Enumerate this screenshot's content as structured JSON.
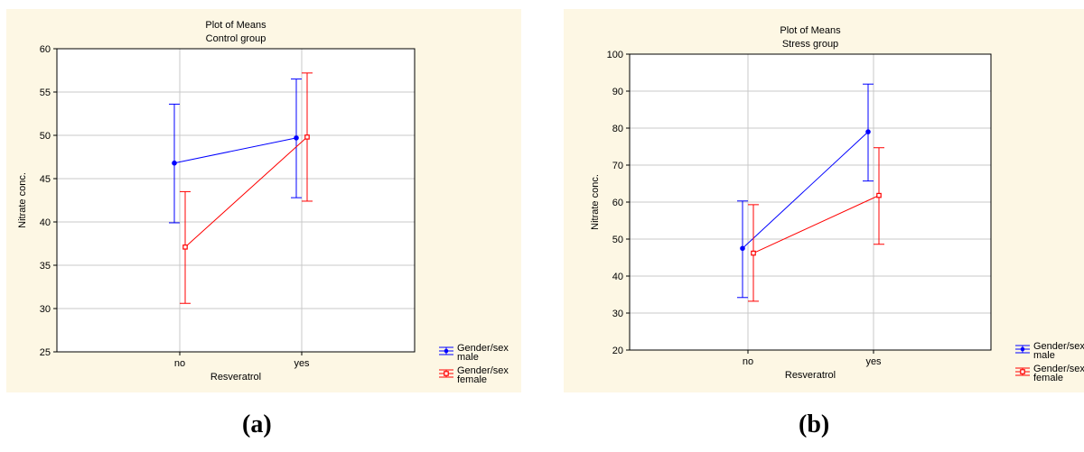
{
  "colors": {
    "panel_background": "#fdf7e4",
    "plot_background": "#ffffff",
    "male": "#0000ff",
    "female": "#ff0000",
    "grid": "#c8c8c8"
  },
  "captions": [
    "(a)",
    "(b)"
  ],
  "chart_data": [
    {
      "type": "line",
      "title": "Plot of Means",
      "subtitle": "Control group",
      "xlabel": "Resveratrol",
      "ylabel": "Nitrate conc.",
      "categories": [
        "no",
        "yes"
      ],
      "ylim": [
        25,
        60
      ],
      "yticks": [
        25,
        30,
        35,
        40,
        45,
        50,
        55,
        60
      ],
      "grid": true,
      "legend_position": "bottom-right-outside",
      "series": [
        {
          "name": "Gender/sex male",
          "legend_lines": [
            "Gender/sex",
            "male"
          ],
          "color": "#0000ff",
          "marker": "circle",
          "values": [
            46.8,
            49.7
          ],
          "lower": [
            39.9,
            42.8
          ],
          "upper": [
            53.6,
            56.5
          ]
        },
        {
          "name": "Gender/sex female",
          "legend_lines": [
            "Gender/sex",
            "female"
          ],
          "color": "#ff0000",
          "marker": "square",
          "values": [
            37.1,
            49.8
          ],
          "lower": [
            30.6,
            42.4
          ],
          "upper": [
            43.5,
            57.2
          ]
        }
      ]
    },
    {
      "type": "line",
      "title": "Plot of Means",
      "subtitle": "Stress group",
      "xlabel": "Resveratrol",
      "ylabel": "Nitrate conc.",
      "categories": [
        "no",
        "yes"
      ],
      "ylim": [
        20,
        100
      ],
      "yticks": [
        20,
        30,
        40,
        50,
        60,
        70,
        80,
        90,
        100
      ],
      "grid": true,
      "legend_position": "bottom-right-outside",
      "series": [
        {
          "name": "Gender/sex male",
          "legend_lines": [
            "Gender/sex",
            "male"
          ],
          "color": "#0000ff",
          "marker": "circle",
          "values": [
            47.5,
            79.0
          ],
          "lower": [
            34.2,
            65.7
          ],
          "upper": [
            60.3,
            91.9
          ]
        },
        {
          "name": "Gender/sex female",
          "legend_lines": [
            "Gender/sex",
            "female"
          ],
          "color": "#ff0000",
          "marker": "square",
          "values": [
            46.2,
            61.8
          ],
          "lower": [
            33.2,
            48.6
          ],
          "upper": [
            59.3,
            74.7
          ]
        }
      ]
    }
  ]
}
